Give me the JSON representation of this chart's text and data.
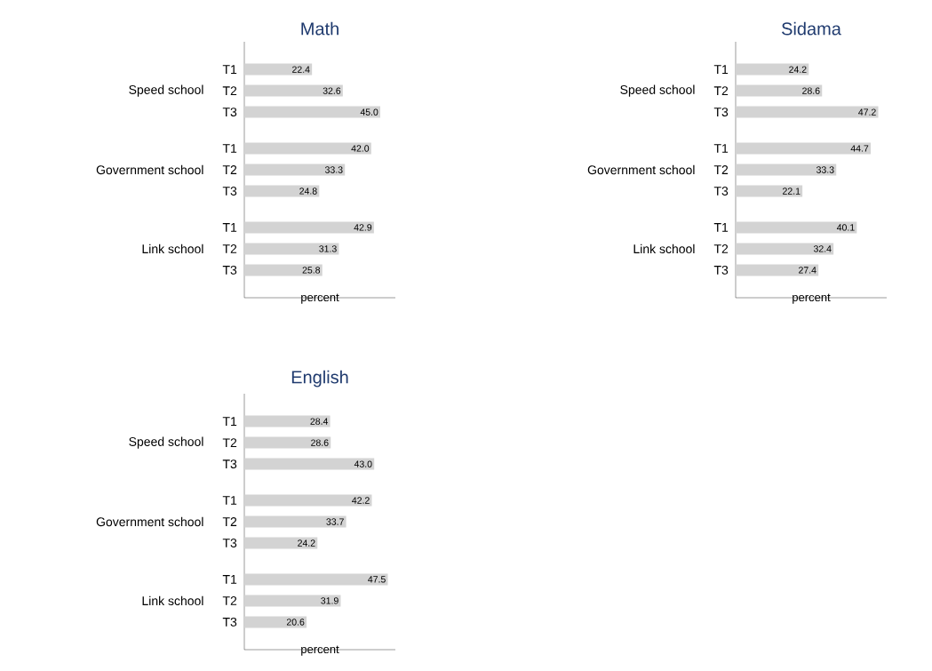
{
  "chart_data": [
    {
      "type": "bar",
      "orientation": "horizontal",
      "title": "Math",
      "xlabel": "percent",
      "categories": [
        "Speed school",
        "Government school",
        "Link school"
      ],
      "xlim": [
        0,
        50
      ],
      "series": [
        {
          "name": "T1",
          "color": "#d3d3d3",
          "values": [
            22.4,
            42.0,
            42.9
          ],
          "value_labels": [
            "22.4",
            "42.0",
            "42.9"
          ]
        },
        {
          "name": "T2",
          "color": "#d3d3d3",
          "values": [
            32.6,
            33.3,
            31.3
          ],
          "value_labels": [
            "32.6",
            "33.3",
            "31.3"
          ]
        },
        {
          "name": "T3",
          "color": "#d3d3d3",
          "values": [
            45.0,
            24.8,
            25.8
          ],
          "value_labels": [
            "45.0",
            "24.8",
            "25.8"
          ]
        }
      ]
    },
    {
      "type": "bar",
      "orientation": "horizontal",
      "title": "Sidama",
      "xlabel": "percent",
      "categories": [
        "Speed school",
        "Government school",
        "Link school"
      ],
      "xlim": [
        0,
        50
      ],
      "series": [
        {
          "name": "T1",
          "color": "#d3d3d3",
          "values": [
            24.2,
            44.7,
            40.1
          ],
          "value_labels": [
            "24.2",
            "44.7",
            "40.1"
          ]
        },
        {
          "name": "T2",
          "color": "#d3d3d3",
          "values": [
            28.6,
            33.3,
            32.4
          ],
          "value_labels": [
            "28.6",
            "33.3",
            "32.4"
          ]
        },
        {
          "name": "T3",
          "color": "#d3d3d3",
          "values": [
            47.2,
            22.1,
            27.4
          ],
          "value_labels": [
            "47.2",
            "22.1",
            "27.4"
          ]
        }
      ]
    },
    {
      "type": "bar",
      "orientation": "horizontal",
      "title": "English",
      "xlabel": "percent",
      "categories": [
        "Speed school",
        "Government school",
        "Link school"
      ],
      "xlim": [
        0,
        50
      ],
      "series": [
        {
          "name": "T1",
          "color": "#d3d3d3",
          "values": [
            28.4,
            42.2,
            47.5
          ],
          "value_labels": [
            "28.4",
            "42.2",
            "47.5"
          ]
        },
        {
          "name": "T2",
          "color": "#d3d3d3",
          "values": [
            28.6,
            33.7,
            31.9
          ],
          "value_labels": [
            "28.6",
            "33.7",
            "31.9"
          ]
        },
        {
          "name": "T3",
          "color": "#d3d3d3",
          "values": [
            43.0,
            24.2,
            20.6
          ],
          "value_labels": [
            "43.0",
            "24.2",
            "20.6"
          ]
        }
      ]
    }
  ]
}
